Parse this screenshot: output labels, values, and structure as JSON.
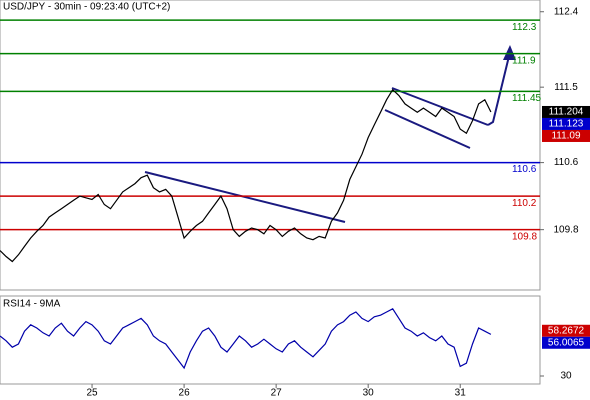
{
  "chart_data": [
    {
      "type": "line",
      "title": "USD/JPY - 30min - 09:23:40 (UTC+2)",
      "color": "#000000",
      "xlim": [
        0,
        88
      ],
      "ylim": [
        109.08,
        112.54
      ],
      "yticks": [
        112.4,
        111.5,
        110.6,
        109.8
      ],
      "values": [
        109.55,
        109.48,
        109.42,
        109.5,
        109.6,
        109.7,
        109.78,
        109.85,
        109.95,
        110.0,
        110.05,
        110.1,
        110.15,
        110.2,
        110.18,
        110.16,
        110.22,
        110.1,
        110.05,
        110.15,
        110.25,
        110.3,
        110.35,
        110.42,
        110.45,
        110.3,
        110.25,
        110.28,
        110.2,
        109.95,
        109.7,
        109.78,
        109.85,
        109.9,
        110.0,
        110.1,
        110.2,
        110.05,
        109.8,
        109.72,
        109.78,
        109.82,
        109.8,
        109.75,
        109.85,
        109.8,
        109.72,
        109.78,
        109.82,
        109.75,
        109.7,
        109.68,
        109.72,
        109.7,
        109.9,
        110.0,
        110.15,
        110.4,
        110.55,
        110.7,
        110.9,
        111.05,
        111.2,
        111.35,
        111.47,
        111.4,
        111.3,
        111.25,
        111.2,
        111.25,
        111.2,
        111.15,
        111.25,
        111.2,
        111.15,
        111.0,
        110.95,
        111.1,
        111.3,
        111.35,
        111.204
      ],
      "levels": [
        {
          "value": 112.3,
          "color": "#008000"
        },
        {
          "value": 111.9,
          "color": "#008000"
        },
        {
          "value": 111.45,
          "color": "#008000"
        },
        {
          "value": 110.6,
          "color": "#0000cc"
        },
        {
          "value": 110.2,
          "color": "#cc0000"
        },
        {
          "value": 109.8,
          "color": "#cc0000"
        }
      ],
      "price_tags": [
        {
          "value": 111.204,
          "color": "#000000"
        },
        {
          "value": 111.123,
          "color": "#0000cc"
        },
        {
          "value": 111.09,
          "color": "#cc0000"
        }
      ]
    },
    {
      "type": "line",
      "title": "RSI14 - 9MA",
      "color": "#0000aa",
      "xlim": [
        0,
        88
      ],
      "ylim": [
        25,
        80
      ],
      "yticks": [
        30
      ],
      "xticks": [
        {
          "value": 15,
          "label": "25"
        },
        {
          "value": 30,
          "label": "26"
        },
        {
          "value": 45,
          "label": "27"
        },
        {
          "value": 60,
          "label": "30"
        },
        {
          "value": 75,
          "label": "31"
        }
      ],
      "values": [
        55,
        52,
        48,
        50,
        58,
        62,
        60,
        57,
        55,
        60,
        63,
        58,
        55,
        60,
        64,
        62,
        58,
        52,
        50,
        55,
        60,
        62,
        64,
        66,
        62,
        55,
        52,
        50,
        45,
        40,
        35,
        45,
        52,
        58,
        60,
        55,
        48,
        45,
        50,
        55,
        52,
        48,
        50,
        53,
        50,
        47,
        45,
        50,
        52,
        48,
        45,
        42,
        46,
        50,
        58,
        62,
        64,
        68,
        70,
        66,
        64,
        67,
        68,
        70,
        72,
        66,
        60,
        58,
        55,
        57,
        54,
        52,
        55,
        50,
        48,
        36,
        38,
        50,
        60,
        58,
        56
      ],
      "price_tags": [
        {
          "value": 58.2672,
          "color": "#cc0000"
        },
        {
          "value": 56.0065,
          "color": "#0000cc"
        }
      ]
    }
  ]
}
